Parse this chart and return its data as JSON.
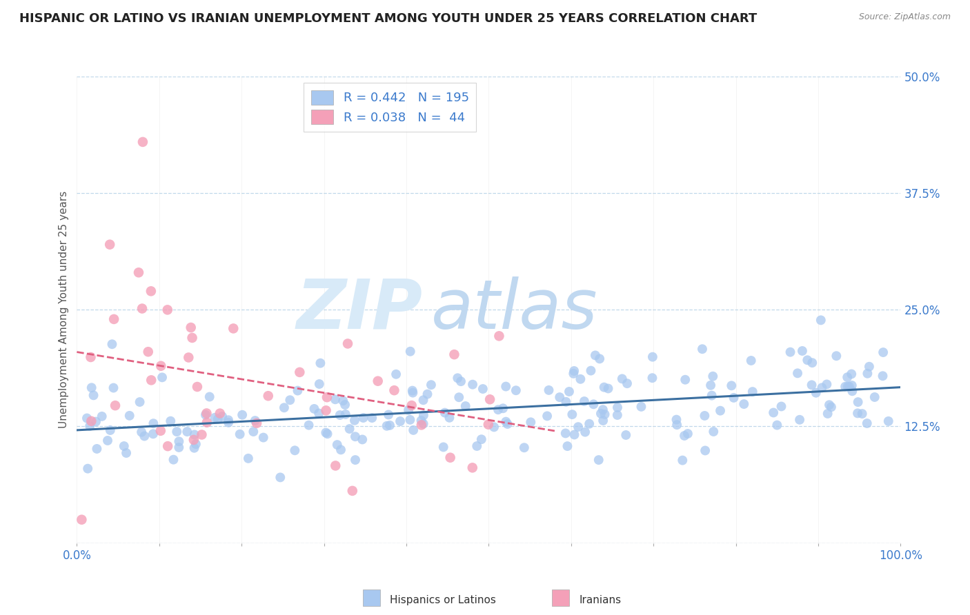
{
  "title": "HISPANIC OR LATINO VS IRANIAN UNEMPLOYMENT AMONG YOUTH UNDER 25 YEARS CORRELATION CHART",
  "source": "Source: ZipAtlas.com",
  "ylabel": "Unemployment Among Youth under 25 years",
  "xlabel": "",
  "xlim": [
    0.0,
    1.0
  ],
  "ylim": [
    0.0,
    0.5
  ],
  "yticks": [
    0.0,
    0.125,
    0.25,
    0.375,
    0.5
  ],
  "ytick_labels": [
    "",
    "12.5%",
    "25.0%",
    "37.5%",
    "50.0%"
  ],
  "xticks": [
    0.0,
    0.1,
    0.2,
    0.3,
    0.4,
    0.5,
    0.6,
    0.7,
    0.8,
    0.9,
    1.0
  ],
  "xtick_labels_show": [
    "0.0%",
    "",
    "",
    "",
    "",
    "",
    "",
    "",
    "",
    "",
    "100.0%"
  ],
  "series": [
    {
      "name": "Hispanics or Latinos",
      "R": 0.442,
      "N": 195,
      "color_scatter": "#a8c8f0",
      "color_line": "#3b6fa0",
      "line_style": "solid",
      "alpha": 0.75
    },
    {
      "name": "Iranians",
      "R": 0.038,
      "N": 44,
      "color_scatter": "#f4a0b8",
      "color_line": "#e06080",
      "line_style": "dashed",
      "alpha": 0.8
    }
  ],
  "watermark_zip": "ZIP",
  "watermark_atlas": "atlas",
  "watermark_color_zip": "#d8eaf8",
  "watermark_color_atlas": "#c0d8f0",
  "background_color": "#ffffff",
  "grid_color": "#c0d8ea",
  "title_color": "#222222",
  "ylabel_color": "#555555",
  "tick_label_color": "#3b7acc",
  "legend_R_color": "#3b7acc",
  "legend_N_color": "#cc3333",
  "title_fontsize": 13,
  "axis_label_fontsize": 11,
  "tick_fontsize": 12,
  "legend_fontsize": 13,
  "source_fontsize": 9
}
